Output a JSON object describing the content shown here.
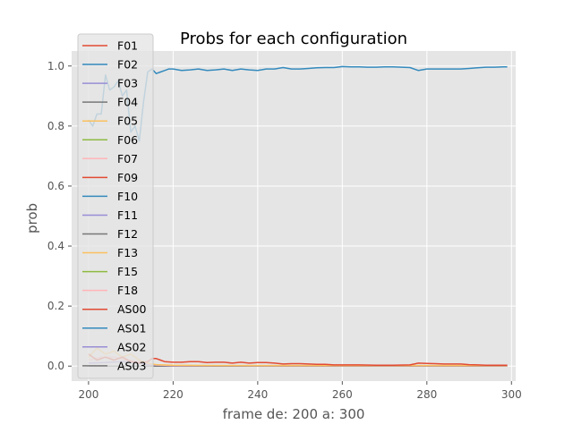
{
  "chart_data": {
    "type": "line",
    "title": "Probs for each configuration",
    "xlabel": "frame de: 200 a: 300",
    "ylabel": "prob",
    "xlim": [
      196,
      301
    ],
    "ylim": [
      -0.05,
      1.05
    ],
    "xticks": [
      200,
      220,
      240,
      260,
      280,
      300
    ],
    "yticks": [
      0.0,
      0.2,
      0.4,
      0.6,
      0.8,
      1.0
    ],
    "grid": true,
    "legend_position": "upper-left",
    "legend": [
      "F01",
      "F02",
      "F03",
      "F04",
      "F05",
      "F06",
      "F07",
      "F09",
      "F10",
      "F11",
      "F12",
      "F13",
      "F15",
      "F18",
      "AS00",
      "AS01",
      "AS02",
      "AS03"
    ],
    "legend_colors": [
      "#E24A33",
      "#348ABD",
      "#988ED5",
      "#777777",
      "#FBC15E",
      "#8EBA42",
      "#FFB5B8",
      "#E24A33",
      "#348ABD",
      "#988ED5",
      "#777777",
      "#FBC15E",
      "#8EBA42",
      "#FFB5B8",
      "#E24A33",
      "#348ABD",
      "#988ED5",
      "#777777"
    ],
    "series": [
      {
        "name": "F02",
        "color": "#348ABD",
        "x": [
          200,
          201,
          202,
          203,
          204,
          205,
          206,
          207,
          208,
          209,
          210,
          211,
          212,
          213,
          214,
          215,
          216,
          217,
          218,
          219,
          220,
          222,
          224,
          226,
          228,
          230,
          232,
          234,
          236,
          238,
          240,
          242,
          244,
          246,
          248,
          250,
          252,
          254,
          256,
          258,
          260,
          262,
          264,
          266,
          268,
          270,
          272,
          274,
          276,
          278,
          280,
          282,
          284,
          286,
          288,
          290,
          292,
          294,
          296,
          298,
          299
        ],
        "y": [
          0.82,
          0.8,
          0.84,
          0.84,
          0.97,
          0.92,
          0.93,
          0.95,
          0.9,
          0.92,
          0.78,
          0.8,
          0.75,
          0.88,
          0.98,
          0.99,
          0.975,
          0.98,
          0.985,
          0.99,
          0.99,
          0.985,
          0.987,
          0.99,
          0.985,
          0.987,
          0.99,
          0.985,
          0.99,
          0.987,
          0.985,
          0.99,
          0.99,
          0.995,
          0.99,
          0.99,
          0.992,
          0.994,
          0.995,
          0.995,
          0.998,
          0.997,
          0.997,
          0.996,
          0.996,
          0.997,
          0.997,
          0.996,
          0.995,
          0.985,
          0.99,
          0.99,
          0.99,
          0.99,
          0.99,
          0.992,
          0.994,
          0.996,
          0.996,
          0.997,
          0.997
        ]
      },
      {
        "name": "F01",
        "color": "#E24A33",
        "x": [
          200,
          202,
          204,
          206,
          208,
          210,
          212,
          214,
          215,
          216,
          217,
          218,
          220,
          222,
          224,
          226,
          228,
          230,
          232,
          234,
          236,
          238,
          240,
          242,
          244,
          246,
          248,
          250,
          252,
          254,
          256,
          258,
          260,
          264,
          268,
          272,
          276,
          278,
          280,
          282,
          284,
          286,
          288,
          290,
          292,
          294,
          296,
          298,
          299
        ],
        "y": [
          0.04,
          0.02,
          0.03,
          0.02,
          0.03,
          0.015,
          0.01,
          0.015,
          0.025,
          0.025,
          0.02,
          0.015,
          0.013,
          0.013,
          0.015,
          0.015,
          0.012,
          0.013,
          0.013,
          0.01,
          0.013,
          0.01,
          0.012,
          0.012,
          0.01,
          0.007,
          0.008,
          0.008,
          0.007,
          0.006,
          0.006,
          0.004,
          0.004,
          0.004,
          0.003,
          0.003,
          0.004,
          0.01,
          0.009,
          0.008,
          0.007,
          0.007,
          0.007,
          0.005,
          0.004,
          0.003,
          0.003,
          0.003,
          0.003
        ]
      },
      {
        "name": "F05",
        "color": "#FBC15E",
        "x": [
          200,
          202,
          204,
          206,
          208,
          210,
          212,
          214,
          216,
          220,
          230,
          240,
          250,
          260,
          270,
          280,
          290,
          299
        ],
        "y": [
          0.03,
          0.06,
          0.04,
          0.05,
          0.03,
          0.04,
          0.02,
          0.01,
          0.005,
          0.003,
          0.002,
          0.002,
          0.002,
          0.002,
          0.002,
          0.002,
          0.002,
          0.002
        ]
      },
      {
        "name": "F07",
        "color": "#FFB5B8",
        "x": [
          200,
          203,
          206,
          209,
          212,
          214,
          216,
          220,
          240,
          260,
          280,
          299
        ],
        "y": [
          0.02,
          0.03,
          0.03,
          0.02,
          0.015,
          0.008,
          0.004,
          0.002,
          0.001,
          0.001,
          0.001,
          0.001
        ]
      },
      {
        "name": "F11",
        "color": "#988ED5",
        "x": [
          200,
          204,
          208,
          212,
          214,
          216,
          220,
          240,
          260,
          280,
          299
        ],
        "y": [
          0.01,
          0.012,
          0.015,
          0.01,
          0.006,
          0.003,
          0.001,
          0.001,
          0.001,
          0.001,
          0.001
        ]
      },
      {
        "name": "F12",
        "color": "#777777",
        "x": [
          200,
          220,
          240,
          260,
          280,
          299
        ],
        "y": [
          0.0,
          0.0,
          0.0,
          0.0,
          0.0,
          0.0
        ]
      }
    ]
  }
}
